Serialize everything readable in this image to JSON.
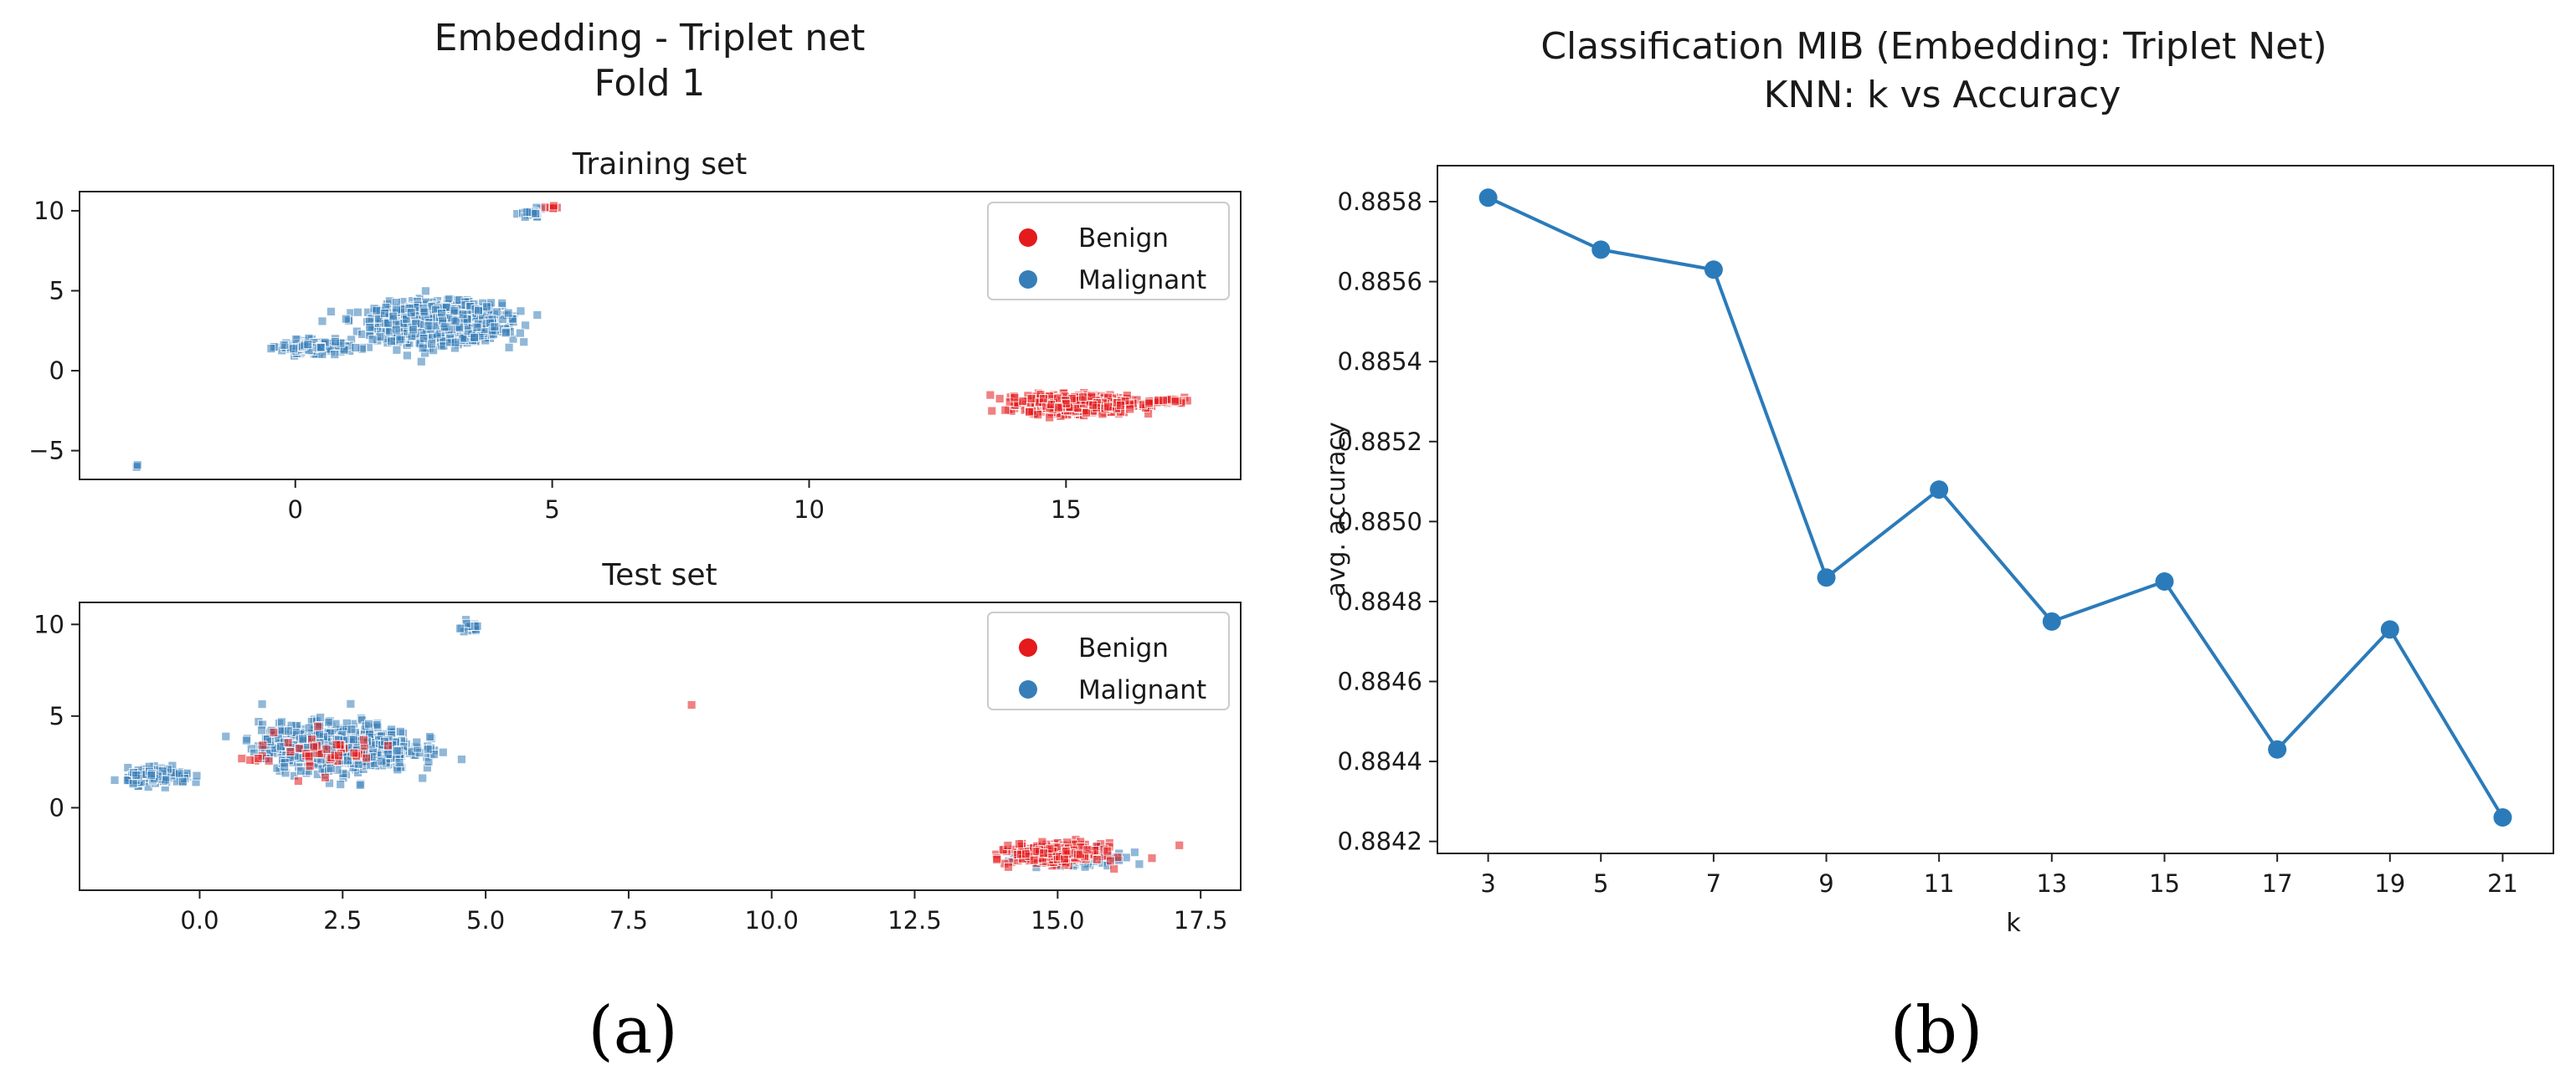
{
  "figure_a": {
    "title_line1": "Embedding - Triplet net",
    "title_line2": "Fold 1",
    "caption": "(a)",
    "legend": [
      {
        "label": "Benign",
        "color": "#e41a1c"
      },
      {
        "label": "Malignant",
        "color": "#377eb8"
      }
    ]
  },
  "figure_b": {
    "caption": "(b)"
  },
  "chart_data": [
    {
      "type": "scatter",
      "title": "Training set",
      "xlabel": "",
      "ylabel": "",
      "xlim": [
        -4.2,
        18.4
      ],
      "ylim": [
        -6.8,
        11.2
      ],
      "xticks": [
        0,
        5,
        10,
        15
      ],
      "xtick_labels": [
        "0",
        "5",
        "10",
        "15"
      ],
      "yticks": [
        -5,
        0,
        5,
        10
      ],
      "ytick_labels": [
        "−5",
        "0",
        "5",
        "10"
      ],
      "legend_position": "top-right",
      "series": [
        {
          "name": "Malignant",
          "color": "#377eb8",
          "clusters": [
            {
              "cx": 2.8,
              "cy": 3.0,
              "sx": 1.1,
              "sy": 1.1,
              "n": 1100
            },
            {
              "cx": 0.4,
              "cy": 1.5,
              "sx": 0.6,
              "sy": 0.35,
              "n": 180
            },
            {
              "cx": 4.6,
              "cy": 9.8,
              "sx": 0.2,
              "sy": 0.25,
              "n": 25
            },
            {
              "cx": -3.1,
              "cy": -6.0,
              "sx": 0.03,
              "sy": 0.1,
              "n": 3
            }
          ]
        },
        {
          "name": "Benign",
          "color": "#e41a1c",
          "clusters": [
            {
              "cx": 15.2,
              "cy": -2.1,
              "sx": 0.9,
              "sy": 0.5,
              "n": 700
            },
            {
              "cx": 17.0,
              "cy": -1.9,
              "sx": 0.35,
              "sy": 0.15,
              "n": 40
            },
            {
              "cx": 5.0,
              "cy": 10.2,
              "sx": 0.1,
              "sy": 0.1,
              "n": 6
            }
          ]
        }
      ]
    },
    {
      "type": "scatter",
      "title": "Test set",
      "xlabel": "",
      "ylabel": "",
      "xlim": [
        -2.1,
        18.2
      ],
      "ylim": [
        -4.5,
        11.2
      ],
      "xticks": [
        0.0,
        2.5,
        5.0,
        7.5,
        10.0,
        12.5,
        15.0,
        17.5
      ],
      "xtick_labels": [
        "0.0",
        "2.5",
        "5.0",
        "7.5",
        "10.0",
        "12.5",
        "15.0",
        "17.5"
      ],
      "yticks": [
        0,
        5,
        10
      ],
      "ytick_labels": [
        "0",
        "5",
        "10"
      ],
      "legend_position": "top-right",
      "series": [
        {
          "name": "Malignant",
          "color": "#377eb8",
          "clusters": [
            {
              "cx": 2.4,
              "cy": 3.3,
              "sx": 1.2,
              "sy": 1.2,
              "n": 650
            },
            {
              "cx": -0.7,
              "cy": 1.7,
              "sx": 0.5,
              "sy": 0.4,
              "n": 150
            },
            {
              "cx": 4.7,
              "cy": 9.8,
              "sx": 0.2,
              "sy": 0.25,
              "n": 20
            },
            {
              "cx": 15.2,
              "cy": -2.6,
              "sx": 0.7,
              "sy": 0.5,
              "n": 180
            }
          ]
        },
        {
          "name": "Benign",
          "color": "#e41a1c",
          "clusters": [
            {
              "cx": 15.0,
              "cy": -2.5,
              "sx": 0.7,
              "sy": 0.5,
              "n": 300
            },
            {
              "cx": 2.0,
              "cy": 3.0,
              "sx": 1.2,
              "sy": 1.0,
              "n": 45
            },
            {
              "cx": 8.6,
              "cy": 5.6,
              "sx": 0.01,
              "sy": 0.01,
              "n": 1
            },
            {
              "cx": 17.1,
              "cy": -2.0,
              "sx": 0.05,
              "sy": 0.05,
              "n": 1
            }
          ]
        }
      ]
    },
    {
      "type": "line",
      "title": "Classification MIB (Embedding: Triplet Net)",
      "subtitle": "KNN: k vs  Accuracy",
      "xlabel": "k",
      "ylabel": "avg. accuracy",
      "color": "#2b7bba",
      "x": [
        3,
        5,
        7,
        9,
        11,
        13,
        15,
        17,
        19,
        21
      ],
      "y": [
        0.88581,
        0.88568,
        0.88563,
        0.88486,
        0.88508,
        0.88475,
        0.88485,
        0.88443,
        0.88473,
        0.88426
      ],
      "xlim": [
        2.1,
        21.9
      ],
      "ylim": [
        0.88417,
        0.88589
      ],
      "xticks": [
        3,
        5,
        7,
        9,
        11,
        13,
        15,
        17,
        19,
        21
      ],
      "xtick_labels": [
        "3",
        "5",
        "7",
        "9",
        "11",
        "13",
        "15",
        "17",
        "19",
        "21"
      ],
      "yticks": [
        0.8842,
        0.8844,
        0.8846,
        0.8848,
        0.885,
        0.8852,
        0.8854,
        0.8856,
        0.8858
      ],
      "ytick_labels": [
        "0.8842",
        "0.8844",
        "0.8846",
        "0.8848",
        "0.8850",
        "0.8852",
        "0.8854",
        "0.8856",
        "0.8858"
      ]
    }
  ]
}
